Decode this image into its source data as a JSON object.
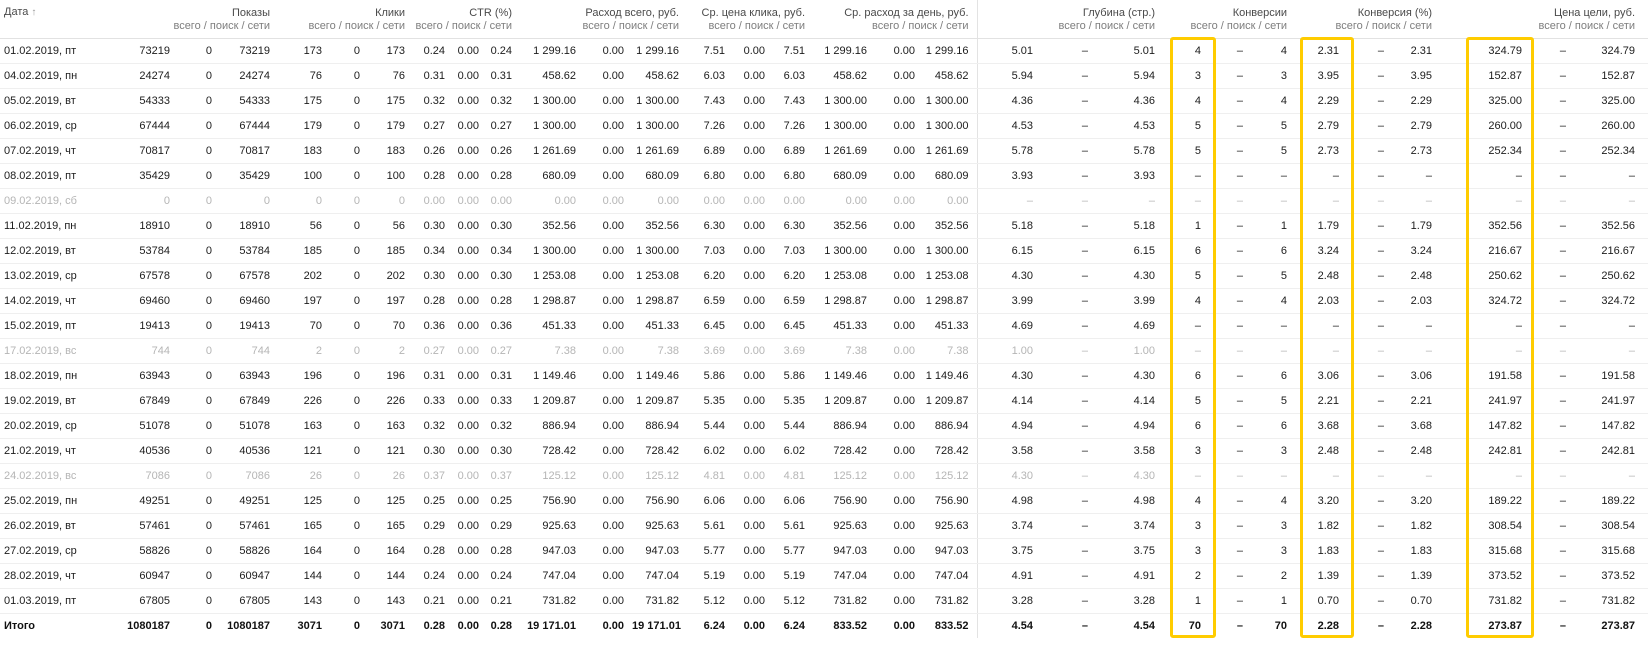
{
  "header": {
    "date_label": "Дата",
    "sort_arrow": "↑",
    "subtitle": "всего / поиск / сети",
    "groups": [
      {
        "key": "impressions",
        "label": "Показы"
      },
      {
        "key": "clicks",
        "label": "Клики"
      },
      {
        "key": "ctr",
        "label": "CTR (%)"
      },
      {
        "key": "cost",
        "label": "Расход всего, руб."
      },
      {
        "key": "avg-cpc",
        "label": "Ср. цена клика, руб."
      },
      {
        "key": "avg-daily-cost",
        "label": "Ср. расход за день, руб."
      },
      {
        "key": "depth",
        "label": "Глубина (стр.)"
      },
      {
        "key": "conversions",
        "label": "Конверсии"
      },
      {
        "key": "conversion-rate",
        "label": "Конверсия (%)"
      },
      {
        "key": "goal-price",
        "label": "Цена цели, руб."
      }
    ]
  },
  "highlight": {
    "color": "#ffcc00"
  },
  "table": {
    "rows": [
      {
        "date": "01.02.2019, пт",
        "muted": false,
        "values": [
          "73219",
          "0",
          "73219",
          "173",
          "0",
          "173",
          "0.24",
          "0.00",
          "0.24",
          "1 299.16",
          "0.00",
          "1 299.16",
          "7.51",
          "0.00",
          "7.51",
          "1 299.16",
          "0.00",
          "1 299.16",
          "5.01",
          "–",
          "5.01",
          "4",
          "–",
          "4",
          "2.31",
          "–",
          "2.31",
          "324.79",
          "–",
          "324.79"
        ]
      },
      {
        "date": "04.02.2019, пн",
        "muted": false,
        "values": [
          "24274",
          "0",
          "24274",
          "76",
          "0",
          "76",
          "0.31",
          "0.00",
          "0.31",
          "458.62",
          "0.00",
          "458.62",
          "6.03",
          "0.00",
          "6.03",
          "458.62",
          "0.00",
          "458.62",
          "5.94",
          "–",
          "5.94",
          "3",
          "–",
          "3",
          "3.95",
          "–",
          "3.95",
          "152.87",
          "–",
          "152.87"
        ]
      },
      {
        "date": "05.02.2019, вт",
        "muted": false,
        "values": [
          "54333",
          "0",
          "54333",
          "175",
          "0",
          "175",
          "0.32",
          "0.00",
          "0.32",
          "1 300.00",
          "0.00",
          "1 300.00",
          "7.43",
          "0.00",
          "7.43",
          "1 300.00",
          "0.00",
          "1 300.00",
          "4.36",
          "–",
          "4.36",
          "4",
          "–",
          "4",
          "2.29",
          "–",
          "2.29",
          "325.00",
          "–",
          "325.00"
        ]
      },
      {
        "date": "06.02.2019, ср",
        "muted": false,
        "values": [
          "67444",
          "0",
          "67444",
          "179",
          "0",
          "179",
          "0.27",
          "0.00",
          "0.27",
          "1 300.00",
          "0.00",
          "1 300.00",
          "7.26",
          "0.00",
          "7.26",
          "1 300.00",
          "0.00",
          "1 300.00",
          "4.53",
          "–",
          "4.53",
          "5",
          "–",
          "5",
          "2.79",
          "–",
          "2.79",
          "260.00",
          "–",
          "260.00"
        ]
      },
      {
        "date": "07.02.2019, чт",
        "muted": false,
        "values": [
          "70817",
          "0",
          "70817",
          "183",
          "0",
          "183",
          "0.26",
          "0.00",
          "0.26",
          "1 261.69",
          "0.00",
          "1 261.69",
          "6.89",
          "0.00",
          "6.89",
          "1 261.69",
          "0.00",
          "1 261.69",
          "5.78",
          "–",
          "5.78",
          "5",
          "–",
          "5",
          "2.73",
          "–",
          "2.73",
          "252.34",
          "–",
          "252.34"
        ]
      },
      {
        "date": "08.02.2019, пт",
        "muted": false,
        "values": [
          "35429",
          "0",
          "35429",
          "100",
          "0",
          "100",
          "0.28",
          "0.00",
          "0.28",
          "680.09",
          "0.00",
          "680.09",
          "6.80",
          "0.00",
          "6.80",
          "680.09",
          "0.00",
          "680.09",
          "3.93",
          "–",
          "3.93",
          "–",
          "–",
          "–",
          "–",
          "–",
          "–",
          "–",
          "–",
          "–"
        ]
      },
      {
        "date": "09.02.2019, сб",
        "muted": true,
        "values": [
          "0",
          "0",
          "0",
          "0",
          "0",
          "0",
          "0.00",
          "0.00",
          "0.00",
          "0.00",
          "0.00",
          "0.00",
          "0.00",
          "0.00",
          "0.00",
          "0.00",
          "0.00",
          "0.00",
          "–",
          "–",
          "–",
          "–",
          "–",
          "–",
          "–",
          "–",
          "–",
          "–",
          "–",
          "–"
        ]
      },
      {
        "date": "11.02.2019, пн",
        "muted": false,
        "values": [
          "18910",
          "0",
          "18910",
          "56",
          "0",
          "56",
          "0.30",
          "0.00",
          "0.30",
          "352.56",
          "0.00",
          "352.56",
          "6.30",
          "0.00",
          "6.30",
          "352.56",
          "0.00",
          "352.56",
          "5.18",
          "–",
          "5.18",
          "1",
          "–",
          "1",
          "1.79",
          "–",
          "1.79",
          "352.56",
          "–",
          "352.56"
        ]
      },
      {
        "date": "12.02.2019, вт",
        "muted": false,
        "values": [
          "53784",
          "0",
          "53784",
          "185",
          "0",
          "185",
          "0.34",
          "0.00",
          "0.34",
          "1 300.00",
          "0.00",
          "1 300.00",
          "7.03",
          "0.00",
          "7.03",
          "1 300.00",
          "0.00",
          "1 300.00",
          "6.15",
          "–",
          "6.15",
          "6",
          "–",
          "6",
          "3.24",
          "–",
          "3.24",
          "216.67",
          "–",
          "216.67"
        ]
      },
      {
        "date": "13.02.2019, ср",
        "muted": false,
        "values": [
          "67578",
          "0",
          "67578",
          "202",
          "0",
          "202",
          "0.30",
          "0.00",
          "0.30",
          "1 253.08",
          "0.00",
          "1 253.08",
          "6.20",
          "0.00",
          "6.20",
          "1 253.08",
          "0.00",
          "1 253.08",
          "4.30",
          "–",
          "4.30",
          "5",
          "–",
          "5",
          "2.48",
          "–",
          "2.48",
          "250.62",
          "–",
          "250.62"
        ]
      },
      {
        "date": "14.02.2019, чт",
        "muted": false,
        "values": [
          "69460",
          "0",
          "69460",
          "197",
          "0",
          "197",
          "0.28",
          "0.00",
          "0.28",
          "1 298.87",
          "0.00",
          "1 298.87",
          "6.59",
          "0.00",
          "6.59",
          "1 298.87",
          "0.00",
          "1 298.87",
          "3.99",
          "–",
          "3.99",
          "4",
          "–",
          "4",
          "2.03",
          "–",
          "2.03",
          "324.72",
          "–",
          "324.72"
        ]
      },
      {
        "date": "15.02.2019, пт",
        "muted": false,
        "values": [
          "19413",
          "0",
          "19413",
          "70",
          "0",
          "70",
          "0.36",
          "0.00",
          "0.36",
          "451.33",
          "0.00",
          "451.33",
          "6.45",
          "0.00",
          "6.45",
          "451.33",
          "0.00",
          "451.33",
          "4.69",
          "–",
          "4.69",
          "–",
          "–",
          "–",
          "–",
          "–",
          "–",
          "–",
          "–",
          "–"
        ]
      },
      {
        "date": "17.02.2019, вс",
        "muted": true,
        "values": [
          "744",
          "0",
          "744",
          "2",
          "0",
          "2",
          "0.27",
          "0.00",
          "0.27",
          "7.38",
          "0.00",
          "7.38",
          "3.69",
          "0.00",
          "3.69",
          "7.38",
          "0.00",
          "7.38",
          "1.00",
          "–",
          "1.00",
          "–",
          "–",
          "–",
          "–",
          "–",
          "–",
          "–",
          "–",
          "–"
        ]
      },
      {
        "date": "18.02.2019, пн",
        "muted": false,
        "values": [
          "63943",
          "0",
          "63943",
          "196",
          "0",
          "196",
          "0.31",
          "0.00",
          "0.31",
          "1 149.46",
          "0.00",
          "1 149.46",
          "5.86",
          "0.00",
          "5.86",
          "1 149.46",
          "0.00",
          "1 149.46",
          "4.30",
          "–",
          "4.30",
          "6",
          "–",
          "6",
          "3.06",
          "–",
          "3.06",
          "191.58",
          "–",
          "191.58"
        ]
      },
      {
        "date": "19.02.2019, вт",
        "muted": false,
        "values": [
          "67849",
          "0",
          "67849",
          "226",
          "0",
          "226",
          "0.33",
          "0.00",
          "0.33",
          "1 209.87",
          "0.00",
          "1 209.87",
          "5.35",
          "0.00",
          "5.35",
          "1 209.87",
          "0.00",
          "1 209.87",
          "4.14",
          "–",
          "4.14",
          "5",
          "–",
          "5",
          "2.21",
          "–",
          "2.21",
          "241.97",
          "–",
          "241.97"
        ]
      },
      {
        "date": "20.02.2019, ср",
        "muted": false,
        "values": [
          "51078",
          "0",
          "51078",
          "163",
          "0",
          "163",
          "0.32",
          "0.00",
          "0.32",
          "886.94",
          "0.00",
          "886.94",
          "5.44",
          "0.00",
          "5.44",
          "886.94",
          "0.00",
          "886.94",
          "4.94",
          "–",
          "4.94",
          "6",
          "–",
          "6",
          "3.68",
          "–",
          "3.68",
          "147.82",
          "–",
          "147.82"
        ]
      },
      {
        "date": "21.02.2019, чт",
        "muted": false,
        "values": [
          "40536",
          "0",
          "40536",
          "121",
          "0",
          "121",
          "0.30",
          "0.00",
          "0.30",
          "728.42",
          "0.00",
          "728.42",
          "6.02",
          "0.00",
          "6.02",
          "728.42",
          "0.00",
          "728.42",
          "3.58",
          "–",
          "3.58",
          "3",
          "–",
          "3",
          "2.48",
          "–",
          "2.48",
          "242.81",
          "–",
          "242.81"
        ]
      },
      {
        "date": "24.02.2019, вс",
        "muted": true,
        "values": [
          "7086",
          "0",
          "7086",
          "26",
          "0",
          "26",
          "0.37",
          "0.00",
          "0.37",
          "125.12",
          "0.00",
          "125.12",
          "4.81",
          "0.00",
          "4.81",
          "125.12",
          "0.00",
          "125.12",
          "4.30",
          "–",
          "4.30",
          "–",
          "–",
          "–",
          "–",
          "–",
          "–",
          "–",
          "–",
          "–"
        ]
      },
      {
        "date": "25.02.2019, пн",
        "muted": false,
        "values": [
          "49251",
          "0",
          "49251",
          "125",
          "0",
          "125",
          "0.25",
          "0.00",
          "0.25",
          "756.90",
          "0.00",
          "756.90",
          "6.06",
          "0.00",
          "6.06",
          "756.90",
          "0.00",
          "756.90",
          "4.98",
          "–",
          "4.98",
          "4",
          "–",
          "4",
          "3.20",
          "–",
          "3.20",
          "189.22",
          "–",
          "189.22"
        ]
      },
      {
        "date": "26.02.2019, вт",
        "muted": false,
        "values": [
          "57461",
          "0",
          "57461",
          "165",
          "0",
          "165",
          "0.29",
          "0.00",
          "0.29",
          "925.63",
          "0.00",
          "925.63",
          "5.61",
          "0.00",
          "5.61",
          "925.63",
          "0.00",
          "925.63",
          "3.74",
          "–",
          "3.74",
          "3",
          "–",
          "3",
          "1.82",
          "–",
          "1.82",
          "308.54",
          "–",
          "308.54"
        ]
      },
      {
        "date": "27.02.2019, ср",
        "muted": false,
        "values": [
          "58826",
          "0",
          "58826",
          "164",
          "0",
          "164",
          "0.28",
          "0.00",
          "0.28",
          "947.03",
          "0.00",
          "947.03",
          "5.77",
          "0.00",
          "5.77",
          "947.03",
          "0.00",
          "947.03",
          "3.75",
          "–",
          "3.75",
          "3",
          "–",
          "3",
          "1.83",
          "–",
          "1.83",
          "315.68",
          "–",
          "315.68"
        ]
      },
      {
        "date": "28.02.2019, чт",
        "muted": false,
        "values": [
          "60947",
          "0",
          "60947",
          "144",
          "0",
          "144",
          "0.24",
          "0.00",
          "0.24",
          "747.04",
          "0.00",
          "747.04",
          "5.19",
          "0.00",
          "5.19",
          "747.04",
          "0.00",
          "747.04",
          "4.91",
          "–",
          "4.91",
          "2",
          "–",
          "2",
          "1.39",
          "–",
          "1.39",
          "373.52",
          "–",
          "373.52"
        ]
      },
      {
        "date": "01.03.2019, пт",
        "muted": false,
        "values": [
          "67805",
          "0",
          "67805",
          "143",
          "0",
          "143",
          "0.21",
          "0.00",
          "0.21",
          "731.82",
          "0.00",
          "731.82",
          "5.12",
          "0.00",
          "5.12",
          "731.82",
          "0.00",
          "731.82",
          "3.28",
          "–",
          "3.28",
          "1",
          "–",
          "1",
          "0.70",
          "–",
          "0.70",
          "731.82",
          "–",
          "731.82"
        ]
      }
    ],
    "total_row": {
      "date": "Итого",
      "values": [
        "1080187",
        "0",
        "1080187",
        "3071",
        "0",
        "3071",
        "0.28",
        "0.00",
        "0.28",
        "19 171.01",
        "0.00",
        "19 171.01",
        "6.24",
        "0.00",
        "6.24",
        "833.52",
        "0.00",
        "833.52",
        "4.54",
        "–",
        "4.54",
        "70",
        "–",
        "70",
        "2.28",
        "–",
        "2.28",
        "273.87",
        "–",
        "273.87"
      ]
    }
  }
}
